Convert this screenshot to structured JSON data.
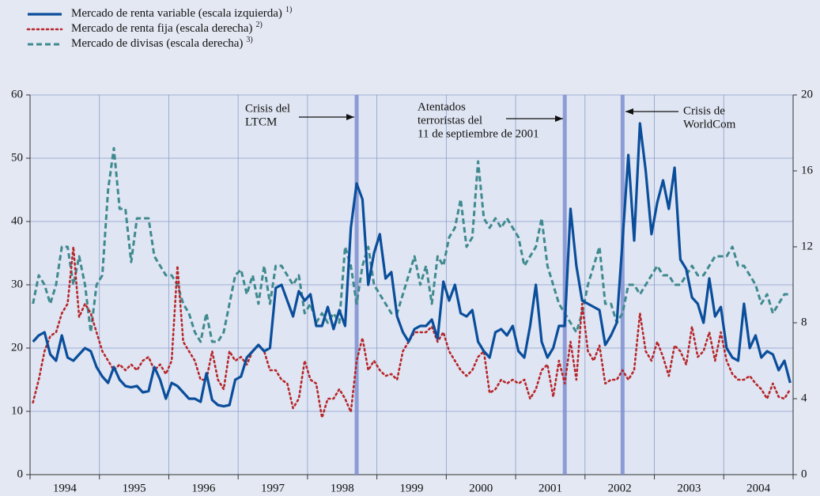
{
  "chart_data": {
    "type": "line",
    "categories": [
      null,
      null,
      null,
      null,
      null,
      null,
      "1994",
      null,
      null,
      null,
      null,
      null,
      null,
      null,
      null,
      null,
      null,
      null,
      "1995",
      null,
      null,
      null,
      null,
      null,
      null,
      null,
      null,
      null,
      null,
      null,
      "1996",
      null,
      null,
      null,
      null,
      null,
      null,
      null,
      null,
      null,
      null,
      null,
      "1997",
      null,
      null,
      null,
      null,
      null,
      null,
      null,
      null,
      null,
      null,
      null,
      "1998",
      null,
      null,
      null,
      null,
      null,
      null,
      null,
      null,
      null,
      null,
      null,
      "1999",
      null,
      null,
      null,
      null,
      null,
      null,
      null,
      null,
      null,
      null,
      null,
      "2000",
      null,
      null,
      null,
      null,
      null,
      null,
      null,
      null,
      null,
      null,
      null,
      "2001",
      null,
      null,
      null,
      null,
      null,
      null,
      null,
      null,
      null,
      null,
      null,
      "2002",
      null,
      null,
      null,
      null,
      null,
      null,
      null,
      null,
      null,
      null,
      null,
      "2003",
      null,
      null,
      null,
      null,
      null,
      null,
      null,
      null,
      null,
      null,
      null,
      "2004",
      null,
      null,
      null,
      null,
      null
    ],
    "ylim": [
      0,
      60
    ],
    "yticks": [
      0,
      10,
      20,
      30,
      40,
      50,
      60
    ],
    "y2lim": [
      0,
      20
    ],
    "y2ticks": [
      0,
      4,
      8,
      12,
      16,
      20
    ],
    "grid": true,
    "series": [
      {
        "name": "Mercado de renta variable (escala izquierda)",
        "note": "1)",
        "color": "#0a4e9b",
        "style": "solid",
        "axis": "y",
        "values": [
          21,
          22,
          22.5,
          19,
          18,
          22,
          18.5,
          18,
          19,
          20,
          19.5,
          17,
          15.5,
          14.5,
          17,
          15,
          14,
          13.8,
          14,
          13,
          13.2,
          17,
          15,
          12,
          14.5,
          14,
          13,
          12,
          12,
          11.5,
          16,
          11.8,
          11,
          10.8,
          11,
          15,
          15.5,
          18.5,
          19.5,
          20.5,
          19.5,
          20,
          29.5,
          30,
          27.5,
          25,
          29,
          27.5,
          28.5,
          23.5,
          23.5,
          26.5,
          23,
          26,
          23.5,
          39,
          46,
          43.5,
          30,
          35,
          38,
          31,
          32,
          25,
          22.5,
          21,
          23,
          23.5,
          23.5,
          24.5,
          21.5,
          30.5,
          27.5,
          30,
          25.5,
          25,
          26,
          21,
          19.5,
          18.5,
          22.5,
          23,
          22,
          23.5,
          19.5,
          18.5,
          23.5,
          30,
          21,
          18.5,
          20,
          23.5,
          23.5,
          42,
          33,
          27.5,
          27,
          26.5,
          26,
          20.5,
          22,
          24,
          37,
          50.5,
          37,
          55.5,
          48,
          38,
          43,
          46.5,
          42,
          48.5,
          34,
          32.5,
          28,
          27,
          24,
          31,
          25,
          26.5,
          20,
          18.5,
          18,
          27,
          20,
          22,
          18.5,
          19.5,
          19,
          16.5,
          18,
          14.5
        ]
      },
      {
        "name": "Mercado de renta fija (escala derecha)",
        "note": "2)",
        "color": "#b7262a",
        "style": "dotted",
        "axis": "y2",
        "values": [
          3.8,
          5,
          6.5,
          7.3,
          7.5,
          8.5,
          9,
          12,
          8.3,
          9,
          8.5,
          7.5,
          6.5,
          6,
          5.5,
          5.8,
          5.5,
          5.8,
          5.5,
          6,
          6.2,
          5.5,
          5.8,
          5.3,
          6,
          11,
          7,
          6.5,
          6,
          5,
          5,
          6.5,
          5,
          4.5,
          6.5,
          6,
          6.2,
          5.8,
          6.5,
          6.8,
          6.5,
          5.5,
          5.5,
          5,
          4.8,
          3.5,
          4,
          6,
          5,
          4.8,
          3,
          4,
          4,
          4.5,
          4,
          3.3,
          6,
          7.2,
          5.5,
          6,
          5.5,
          5.2,
          5.3,
          5,
          6.5,
          7,
          7.5,
          7.5,
          7.5,
          7.8,
          7,
          7.5,
          6.5,
          6,
          5.5,
          5.2,
          5.5,
          6.2,
          6.5,
          4.3,
          4.5,
          5,
          4.8,
          5,
          4.8,
          5,
          4,
          4.5,
          5.5,
          5.8,
          4.1,
          6,
          4.8,
          7,
          5,
          9,
          6.5,
          6,
          6.8,
          4.8,
          5,
          5,
          5.5,
          5,
          5.5,
          8.5,
          6.5,
          6,
          7,
          6.2,
          5.2,
          6.8,
          6.5,
          5.8,
          7.8,
          6.2,
          6.5,
          7.5,
          6,
          7.5,
          6,
          5.3,
          5,
          5,
          5.2,
          4.8,
          4.5,
          4,
          4.8,
          4.1,
          4,
          4.5
        ]
      },
      {
        "name": "Mercado de divisas (escala derecha)",
        "note": "3)",
        "color": "#3f8a8f",
        "style": "dashed",
        "axis": "y2",
        "values": [
          9,
          10.5,
          10,
          9,
          10,
          12,
          12,
          10,
          11.5,
          10,
          7.5,
          10,
          10.5,
          15,
          17.2,
          14,
          14,
          11.2,
          13.5,
          13.5,
          13.5,
          11.5,
          11,
          10.5,
          10.5,
          10,
          9,
          8.5,
          7.5,
          7,
          8.5,
          7,
          7,
          7.5,
          9,
          10.5,
          10.8,
          9.5,
          10.5,
          9,
          11,
          9,
          11,
          11,
          10.5,
          10,
          10.5,
          8.5,
          9,
          8,
          8.5,
          8,
          8.5,
          8,
          12,
          11,
          9,
          11,
          12,
          10,
          9.5,
          9,
          8.5,
          8.5,
          9.5,
          10.5,
          11.5,
          10,
          11,
          9,
          11.5,
          11,
          12.5,
          13,
          14.5,
          12,
          12.5,
          16.5,
          13.5,
          13,
          13.5,
          13,
          13.5,
          13,
          12.5,
          11,
          11.5,
          12,
          13.5,
          11,
          10,
          9,
          8.5,
          8,
          7.5,
          8.5,
          10,
          11,
          12,
          9,
          9,
          8,
          8.5,
          10,
          10,
          9.5,
          10,
          10.5,
          11,
          10.5,
          10.5,
          10,
          10,
          10.5,
          11,
          10.5,
          10.5,
          11,
          11.5,
          11.5,
          11.5,
          12,
          11,
          11,
          10.5,
          10,
          9,
          9.5,
          8.5,
          9,
          9.5,
          9.5
        ]
      }
    ],
    "annotations": [
      {
        "lines": [
          "Crisis del",
          "LTCM"
        ],
        "index": 56
      },
      {
        "lines": [
          "Atentados",
          "terroristas del",
          "11 de septiembre de 2001"
        ],
        "index": 92
      },
      {
        "lines": [
          "Crisis de",
          "WorldCom"
        ],
        "index": 102
      }
    ]
  }
}
